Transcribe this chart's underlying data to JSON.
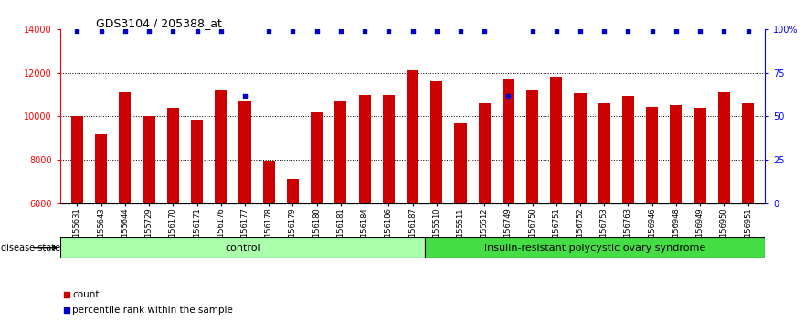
{
  "title": "GDS3104 / 205388_at",
  "samples": [
    "GSM155631",
    "GSM155643",
    "GSM155644",
    "GSM155729",
    "GSM156170",
    "GSM156171",
    "GSM156176",
    "GSM156177",
    "GSM156178",
    "GSM156179",
    "GSM156180",
    "GSM156181",
    "GSM156184",
    "GSM156186",
    "GSM156187",
    "GSM155510",
    "GSM155511",
    "GSM155512",
    "GSM156749",
    "GSM156750",
    "GSM156751",
    "GSM156752",
    "GSM156753",
    "GSM156763",
    "GSM156946",
    "GSM156948",
    "GSM156949",
    "GSM156950",
    "GSM156951"
  ],
  "counts": [
    10000,
    9200,
    11100,
    10000,
    10400,
    9850,
    11200,
    10700,
    7950,
    7150,
    10200,
    10700,
    11000,
    11000,
    12100,
    11600,
    9700,
    10600,
    11700,
    11200,
    11800,
    11050,
    10600,
    10950,
    10450,
    10500,
    10400,
    11100,
    10600
  ],
  "percentile_ranks": [
    99,
    99,
    99,
    99,
    99,
    99,
    99,
    62,
    99,
    99,
    99,
    99,
    99,
    99,
    99,
    99,
    99,
    99,
    62,
    99,
    99,
    99,
    99,
    99,
    99,
    99,
    99,
    99,
    99
  ],
  "control_count": 15,
  "disease_count": 14,
  "control_label": "control",
  "disease_label": "insulin-resistant polycystic ovary syndrome",
  "control_color": "#AAFFAA",
  "disease_color": "#44DD44",
  "bar_color": "#CC0000",
  "percentile_color": "#0000CC",
  "ylim_left": [
    6000,
    14000
  ],
  "ylim_right": [
    0,
    100
  ],
  "yticks_left": [
    6000,
    8000,
    10000,
    12000,
    14000
  ],
  "yticks_right": [
    0,
    25,
    50,
    75,
    100
  ],
  "yticklabels_right": [
    "0",
    "25",
    "50",
    "75",
    "100%"
  ],
  "grid_lines": [
    8000,
    10000,
    12000
  ],
  "title_fontsize": 9,
  "tick_fontsize": 7,
  "sample_fontsize": 6
}
